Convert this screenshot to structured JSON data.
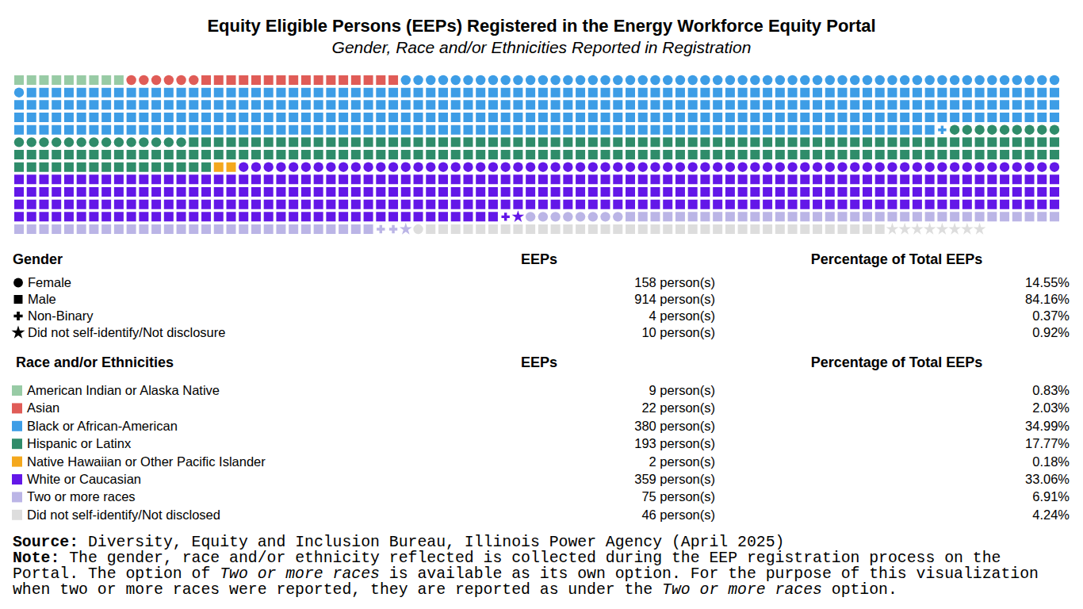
{
  "chart_data": {
    "type": "waffle",
    "title": "Equity Eligible Persons (EEPs) Registered in the Energy Workforce Equity Portal",
    "subtitle": "Gender, Race and/or Ethnicities Reported in Registration",
    "categories": [
      "American Indian or Alaska Native",
      "Asian",
      "Black or African-American",
      "Hispanic or Latinx",
      "Native Hawaiian or Other Pacific Islander",
      "White or Caucasian",
      "Two or more races",
      "Did not self-identify/Not disclosed"
    ],
    "colors": [
      "#98cba5",
      "#e05c57",
      "#3d9de6",
      "#2f8c6a",
      "#f4a81d",
      "#6317e8",
      "#bbb5e6",
      "#dddddd"
    ],
    "series": [
      {
        "name": "Female",
        "marker": "circle",
        "values": [
          0,
          6,
          54,
          23,
          0,
          66,
          8,
          1
        ]
      },
      {
        "name": "Male",
        "marker": "square",
        "values": [
          9,
          16,
          325,
          170,
          2,
          291,
          64,
          37
        ]
      },
      {
        "name": "Non-Binary",
        "marker": "plus",
        "values": [
          0,
          0,
          1,
          0,
          0,
          1,
          2,
          0
        ]
      },
      {
        "name": "Did not self-identify/Not disclosure",
        "marker": "star",
        "values": [
          0,
          0,
          0,
          0,
          0,
          1,
          1,
          8
        ]
      }
    ],
    "gender_table": {
      "heading": "Gender",
      "count_heading": "EEPs",
      "percent_heading": "Percentage of Total EEPs",
      "values": [
        158,
        914,
        4,
        10
      ],
      "percentages": [
        14.55,
        84.16,
        0.37,
        0.92
      ]
    },
    "race_table": {
      "heading": "Race and/or Ethnicities",
      "count_heading": "EEPs",
      "percent_heading": "Percentage of Total EEPs",
      "values": [
        9,
        22,
        380,
        193,
        2,
        359,
        75,
        46
      ],
      "percentages": [
        0.83,
        2.03,
        34.99,
        17.77,
        0.18,
        33.06,
        6.91,
        4.24
      ]
    },
    "count_unit": "person(s)",
    "percent_unit": "%",
    "source": {
      "label": "Source:",
      "text": "Diversity, Equity and Inclusion Bureau, Illinois Power Agency (April 2025)"
    },
    "note": {
      "label": "Note:",
      "lines": [
        [
          {
            "text": "The gender, race and/or ethnicity reflected is collected during the EEP registration process on the"
          }
        ],
        [
          {
            "text": "Portal. The option of "
          },
          {
            "text": "Two or more races",
            "italic": true
          },
          {
            "text": " is available as its own option. For the purpose of this visualization"
          }
        ],
        [
          {
            "text": "when two or more races were reported, they are reported as under the "
          },
          {
            "text": "Two or more races",
            "italic": true
          },
          {
            "text": " option."
          }
        ]
      ]
    }
  }
}
